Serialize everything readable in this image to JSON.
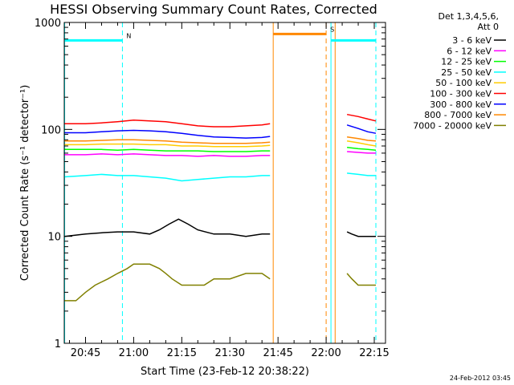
{
  "chart_data": {
    "type": "line",
    "title": "HESSI Observing Summary Count Rates, Corrected",
    "xlabel": "Start Time (23-Feb-12 20:38:22)",
    "ylabel": "Corrected Count Rate (s⁻¹ detector⁻¹)",
    "yscale": "log",
    "ylim": [
      1,
      1000
    ],
    "xlim_minutes": [
      38.37,
      138.5
    ],
    "x_ticks": [
      {
        "label": "20:45",
        "minute": 45
      },
      {
        "label": "21:00",
        "minute": 60
      },
      {
        "label": "21:15",
        "minute": 75
      },
      {
        "label": "21:30",
        "minute": 90
      },
      {
        "label": "21:45",
        "minute": 105
      },
      {
        "label": "22:00",
        "minute": 120
      },
      {
        "label": "22:15",
        "minute": 135
      }
    ],
    "y_ticks": [
      {
        "label": "1000",
        "value": 1000
      },
      {
        "label": "100",
        "value": 100
      },
      {
        "label": "10",
        "value": 10
      },
      {
        "label": "1",
        "value": 1
      }
    ],
    "legend_header": [
      "Det 1,3,4,5,6,",
      "Att 0"
    ],
    "legend_position": "right",
    "series": [
      {
        "name": "3 - 6 keV",
        "color": "#000000",
        "segments": [
          {
            "x": [
              38.5,
              45,
              50,
              55,
              60,
              65,
              68,
              71,
              74,
              77,
              80,
              85,
              90,
              95,
              100,
              102.5
            ],
            "y": [
              10,
              10.5,
              10.8,
              11,
              11,
              10.5,
              11.5,
              13,
              14.5,
              13,
              11.5,
              10.5,
              10.5,
              10,
              10.5,
              10.5
            ]
          },
          {
            "x": [
              126.5,
              128,
              130,
              133,
              135.5
            ],
            "y": [
              11,
              10.5,
              10,
              10,
              10
            ]
          }
        ]
      },
      {
        "name": "6 - 12 keV",
        "color": "#ff00ff",
        "segments": [
          {
            "x": [
              38.5,
              45,
              50,
              55,
              60,
              65,
              70,
              75,
              80,
              85,
              90,
              95,
              100,
              102.5
            ],
            "y": [
              58,
              58,
              59,
              58,
              59,
              58,
              57,
              57,
              56,
              57,
              56,
              56,
              57,
              57
            ]
          },
          {
            "x": [
              126.5,
              130,
              133,
              135.5
            ],
            "y": [
              62,
              61,
              60,
              60
            ]
          }
        ]
      },
      {
        "name": "12 - 25 keV",
        "color": "#00ff00",
        "segments": [
          {
            "x": [
              38.5,
              45,
              50,
              55,
              60,
              65,
              70,
              75,
              80,
              85,
              90,
              95,
              100,
              102.5
            ],
            "y": [
              65,
              65,
              65,
              64,
              65,
              64,
              63,
              63,
              63,
              62,
              62,
              62,
              63,
              63
            ]
          },
          {
            "x": [
              126.5,
              130,
              133,
              135.5
            ],
            "y": [
              68,
              66,
              65,
              64
            ]
          }
        ]
      },
      {
        "name": "25 - 50 keV",
        "color": "#00ffff",
        "segments": [
          {
            "x": [
              38.5,
              45,
              50,
              55,
              60,
              65,
              70,
              75,
              80,
              85,
              90,
              95,
              100,
              102.5
            ],
            "y": [
              36,
              37,
              38,
              37,
              37,
              36,
              35,
              33,
              34,
              35,
              36,
              36,
              37,
              37
            ]
          },
          {
            "x": [
              126.5,
              130,
              133,
              135.5
            ],
            "y": [
              39,
              38,
              37,
              37
            ]
          }
        ]
      },
      {
        "name": "50 - 100 keV",
        "color": "#ffcc00",
        "segments": [
          {
            "x": [
              38.5,
              45,
              50,
              55,
              60,
              65,
              70,
              75,
              80,
              85,
              90,
              95,
              100,
              102.5
            ],
            "y": [
              72,
              72,
              73,
              73,
              73,
              72,
              72,
              70,
              70,
              69,
              69,
              69,
              70,
              71
            ]
          },
          {
            "x": [
              126.5,
              130,
              133,
              135.5
            ],
            "y": [
              78,
              75,
              72,
              70
            ]
          }
        ]
      },
      {
        "name": "100 - 300 keV",
        "color": "#ff0000",
        "segments": [
          {
            "x": [
              38.5,
              45,
              50,
              55,
              60,
              65,
              70,
              75,
              80,
              85,
              90,
              95,
              100,
              102.5
            ],
            "y": [
              113,
              113,
              115,
              118,
              122,
              120,
              118,
              113,
              108,
              106,
              106,
              108,
              110,
              113
            ]
          },
          {
            "x": [
              126.5,
              130,
              133,
              135.5
            ],
            "y": [
              138,
              132,
              125,
              120
            ]
          }
        ]
      },
      {
        "name": "300 - 800 keV",
        "color": "#0000ff",
        "segments": [
          {
            "x": [
              38.5,
              45,
              50,
              55,
              60,
              65,
              70,
              75,
              80,
              85,
              90,
              95,
              100,
              102.5
            ],
            "y": [
              93,
              93,
              95,
              97,
              98,
              97,
              95,
              92,
              88,
              85,
              84,
              83,
              84,
              86
            ]
          },
          {
            "x": [
              126.5,
              130,
              133,
              135.5
            ],
            "y": [
              110,
              102,
              95,
              92
            ]
          }
        ]
      },
      {
        "name": "800 - 7000 keV",
        "color": "#ff8800",
        "segments": [
          {
            "x": [
              38.5,
              45,
              50,
              55,
              60,
              65,
              70,
              75,
              80,
              85,
              90,
              95,
              100,
              102.5
            ],
            "y": [
              78,
              78,
              79,
              80,
              80,
              79,
              78,
              76,
              75,
              74,
              74,
              74,
              75,
              76
            ]
          },
          {
            "x": [
              126.5,
              130,
              133,
              135.5
            ],
            "y": [
              85,
              82,
              79,
              78
            ]
          }
        ]
      },
      {
        "name": "7000 - 20000 keV",
        "color": "#808000",
        "segments": [
          {
            "x": [
              38.5,
              42,
              45,
              48,
              52,
              55,
              58,
              60,
              65,
              68,
              70,
              72,
              75,
              78,
              82,
              85,
              90,
              95,
              100,
              102.5
            ],
            "y": [
              2.5,
              2.5,
              3,
              3.5,
              4,
              4.5,
              5,
              5.5,
              5.5,
              5,
              4.5,
              4,
              3.5,
              3.5,
              3.5,
              4,
              4,
              4.5,
              4.5,
              4
            ]
          },
          {
            "x": [
              126.5,
              128,
              130,
              133,
              135.5
            ],
            "y": [
              4.5,
              4,
              3.5,
              3.5,
              3.5
            ]
          }
        ]
      }
    ],
    "flags": [
      {
        "label": "N",
        "color": "#00ffff",
        "segments": [
          [
            38.5,
            56.5
          ],
          [
            121.5,
            135.5
          ]
        ],
        "flag_y": 680
      },
      {
        "label": "S",
        "color": "#ff8800",
        "segments": [
          [
            103.5,
            120
          ]
        ],
        "flag_y": 780
      }
    ],
    "markers": [
      {
        "minute": 38.5,
        "color": "#00ffff",
        "style": "solid"
      },
      {
        "minute": 56.5,
        "color": "#00ffff",
        "style": "dashed"
      },
      {
        "minute": 103.5,
        "color": "#ff8800",
        "style": "solid"
      },
      {
        "minute": 121.5,
        "color": "#00ffff",
        "style": "solid"
      },
      {
        "minute": 120,
        "color": "#ff8800",
        "style": "dashed"
      },
      {
        "minute": 122.8,
        "color": "#ff8800",
        "style": "solid"
      },
      {
        "minute": 135.5,
        "color": "#00ffff",
        "style": "dashed"
      }
    ],
    "footer_date": "24-Feb-2012 03:45"
  }
}
